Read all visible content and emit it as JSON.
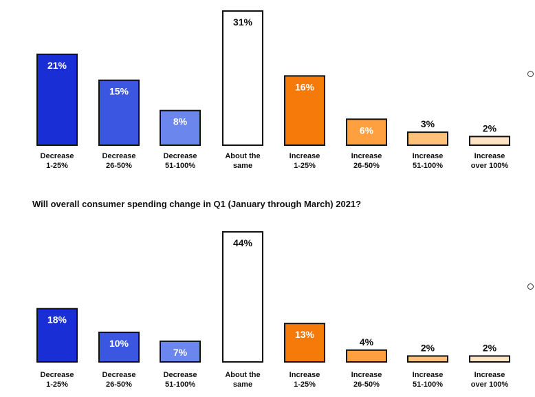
{
  "question2": "Will overall consumer spending change in Q1 (January through March) 2021?",
  "chart_data": [
    {
      "type": "bar",
      "title": "",
      "categories": [
        [
          "Decrease",
          "1-25%"
        ],
        [
          "Decrease",
          "26-50%"
        ],
        [
          "Decrease",
          "51-100%"
        ],
        [
          "About the",
          "same"
        ],
        [
          "Increase",
          "1-25%"
        ],
        [
          "Increase",
          "26-50%"
        ],
        [
          "Increase",
          "51-100%"
        ],
        [
          "Increase",
          "over 100%"
        ]
      ],
      "values": [
        21,
        15,
        8,
        31,
        16,
        6,
        3,
        2
      ],
      "labels": [
        "21%",
        "15%",
        "8%",
        "31%",
        "16%",
        "6%",
        "3%",
        "2%"
      ],
      "colors": [
        "#1a2ed6",
        "#3b56e0",
        "#6b86ec",
        "#ffffff",
        "#f57a0a",
        "#ffa040",
        "#ffc07a",
        "#ffe3c4"
      ],
      "label_colors": [
        "#ffffff",
        "#ffffff",
        "#ffffff",
        "#111111",
        "#ffffff",
        "#ffffff",
        "#111111",
        "#111111"
      ],
      "label_inside": [
        true,
        true,
        true,
        true,
        true,
        true,
        false,
        false
      ],
      "xlabel": "",
      "ylabel": "",
      "ylim": [
        0,
        31
      ],
      "grid": false,
      "legend": "none"
    },
    {
      "type": "bar",
      "title": "",
      "categories": [
        [
          "Decrease",
          "1-25%"
        ],
        [
          "Decrease",
          "26-50%"
        ],
        [
          "Decrease",
          "51-100%"
        ],
        [
          "About the",
          "same"
        ],
        [
          "Increase",
          "1-25%"
        ],
        [
          "Increase",
          "26-50%"
        ],
        [
          "Increase",
          "51-100%"
        ],
        [
          "Increase",
          "over 100%"
        ]
      ],
      "values": [
        18,
        10,
        7,
        44,
        13,
        4,
        2,
        2
      ],
      "labels": [
        "18%",
        "10%",
        "7%",
        "44%",
        "13%",
        "4%",
        "2%",
        "2%"
      ],
      "colors": [
        "#1a2ed6",
        "#3b56e0",
        "#6b86ec",
        "#ffffff",
        "#f57a0a",
        "#ffa040",
        "#ffc07a",
        "#ffe3c4"
      ],
      "label_colors": [
        "#ffffff",
        "#ffffff",
        "#ffffff",
        "#111111",
        "#ffffff",
        "#111111",
        "#111111",
        "#111111"
      ],
      "label_inside": [
        true,
        true,
        true,
        true,
        true,
        false,
        false,
        false
      ],
      "xlabel": "",
      "ylabel": "",
      "ylim": [
        0,
        44
      ],
      "grid": false,
      "legend": "none"
    }
  ]
}
